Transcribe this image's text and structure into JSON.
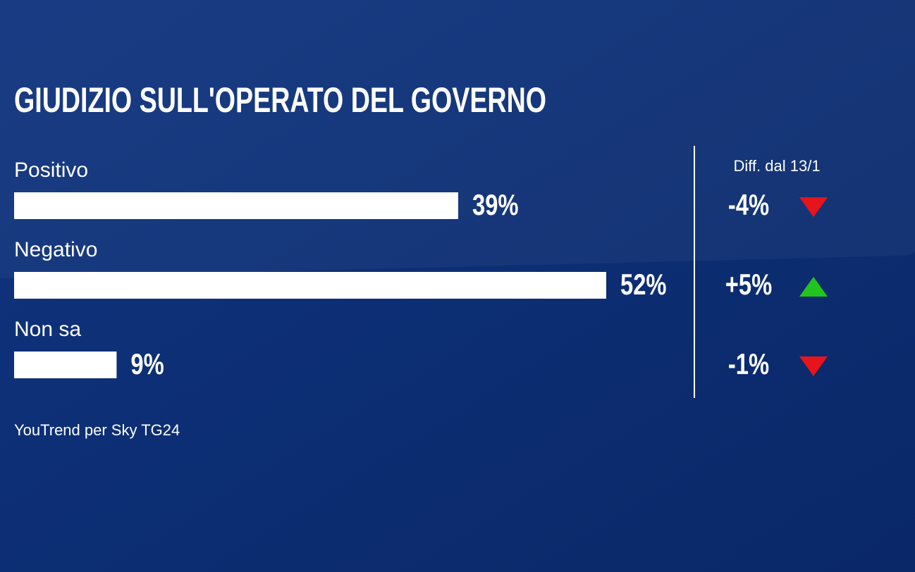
{
  "chart_data": {
    "type": "bar",
    "title": "GIUDIZIO SULL'OPERATO DEL GOVERNO",
    "categories": [
      "Positivo",
      "Negativo",
      "Non sa"
    ],
    "values": [
      39,
      52,
      9
    ],
    "value_labels": [
      "39%",
      "52%",
      "9%"
    ],
    "color": "#ffffff",
    "diff": {
      "title": "Diff. dal 13/1",
      "values": [
        -4,
        5,
        -1
      ],
      "value_labels": [
        "-4%",
        "+5%",
        "-1%"
      ],
      "colors": [
        "#e8141b",
        "#22c41e",
        "#e8141b"
      ]
    },
    "source": "YouTrend per Sky TG24"
  }
}
